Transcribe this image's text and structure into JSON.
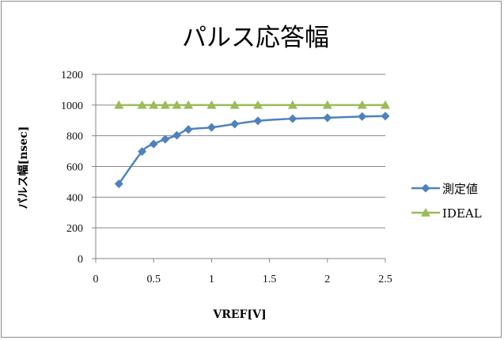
{
  "chart_data": {
    "type": "line",
    "title": "パルス応答幅",
    "xlabel": "VREF[V]",
    "ylabel": "パルス幅[nsec]",
    "xlim": [
      0,
      2.5
    ],
    "ylim": [
      0,
      1200
    ],
    "x_ticks": [
      "0",
      "0.5",
      "1",
      "1.5",
      "2",
      "2.5"
    ],
    "y_ticks": [
      "0",
      "200",
      "400",
      "600",
      "800",
      "1000",
      "1200"
    ],
    "grid": "horizontal",
    "legend_position": "right",
    "series": [
      {
        "name": "測定値",
        "color": "#4f81bd",
        "marker": "diamond",
        "x": [
          0.2,
          0.4,
          0.5,
          0.6,
          0.7,
          0.8,
          1.0,
          1.2,
          1.4,
          1.7,
          2.0,
          2.3,
          2.5
        ],
        "y": [
          487,
          697,
          746,
          777,
          803,
          841,
          854,
          876,
          897,
          911,
          917,
          925,
          928
        ]
      },
      {
        "name": "IDEAL",
        "color": "#9bbb59",
        "marker": "triangle",
        "x": [
          0.2,
          0.4,
          0.5,
          0.6,
          0.7,
          0.8,
          1.0,
          1.2,
          1.4,
          1.7,
          2.0,
          2.3,
          2.5
        ],
        "y": [
          1000,
          1000,
          1000,
          1000,
          1000,
          1000,
          1000,
          1000,
          1000,
          1000,
          1000,
          1000,
          1000
        ]
      }
    ]
  }
}
